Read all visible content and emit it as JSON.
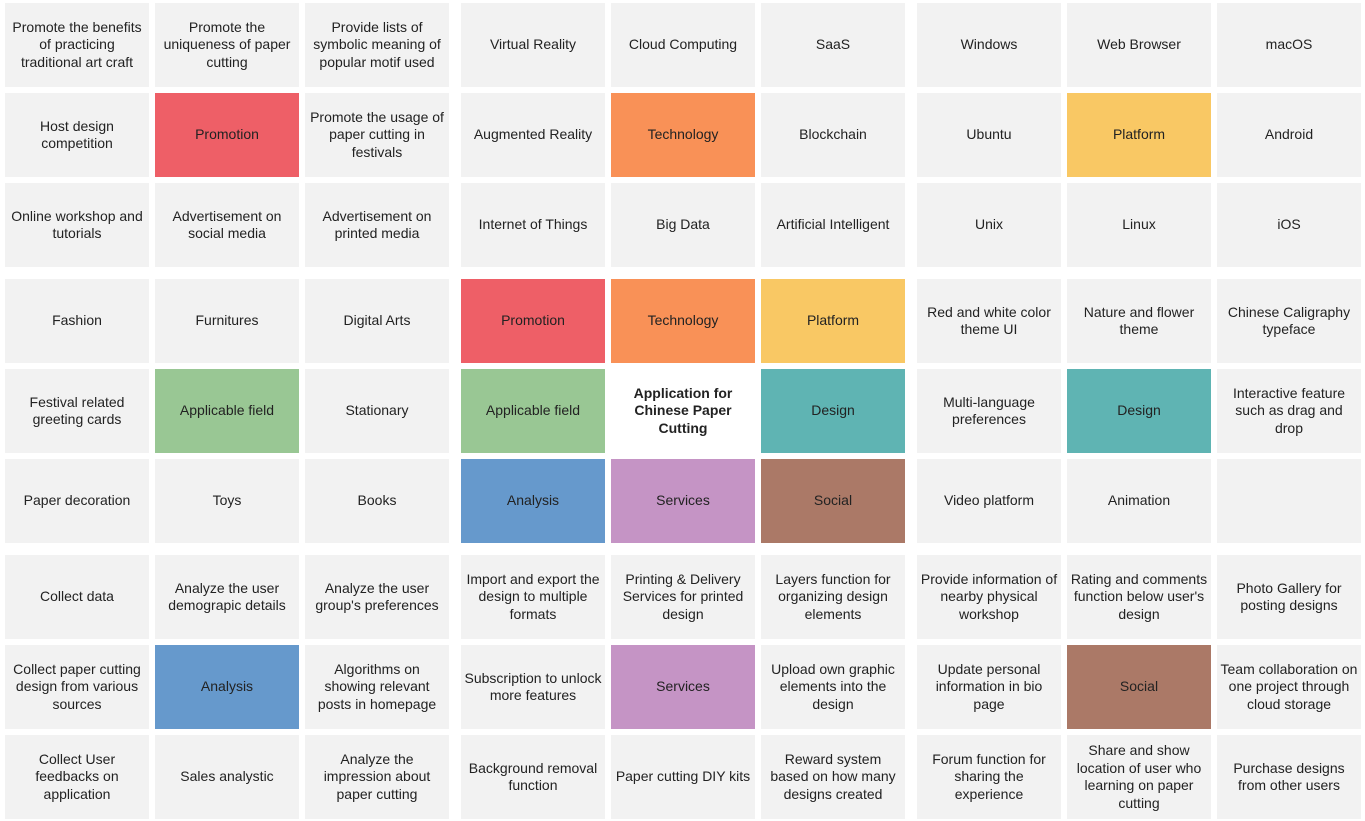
{
  "colors": {
    "empty": "#f2f2f2",
    "center": "#ffffff",
    "promotion": "#ee5f67",
    "technology": "#f99157",
    "platform": "#f9c864",
    "applicable": "#99c794",
    "design": "#5fb4b3",
    "analysis": "#6699cc",
    "services": "#c594c5",
    "social": "#ab7967"
  },
  "rows": [
    [
      {
        "text": "Promote the benefits of practicing traditional art craft"
      },
      {
        "text": "Promote the uniqueness of paper cutting"
      },
      {
        "text": "Provide lists of symbolic meaning of popular motif used"
      },
      {
        "text": "Virtual Reality"
      },
      {
        "text": "Cloud Computing"
      },
      {
        "text": "SaaS"
      },
      {
        "text": "Windows"
      },
      {
        "text": "Web Browser"
      },
      {
        "text": "macOS"
      }
    ],
    [
      {
        "text": "Host design competition"
      },
      {
        "text": "Promotion",
        "color": "promotion"
      },
      {
        "text": "Promote the usage of paper cutting in festivals"
      },
      {
        "text": "Augmented Reality"
      },
      {
        "text": "Technology",
        "color": "technology"
      },
      {
        "text": "Blockchain"
      },
      {
        "text": "Ubuntu"
      },
      {
        "text": "Platform",
        "color": "platform"
      },
      {
        "text": "Android"
      }
    ],
    [
      {
        "text": "Online workshop and tutorials"
      },
      {
        "text": "Advertisement on social media"
      },
      {
        "text": "Advertisement on printed media"
      },
      {
        "text": "Internet of Things"
      },
      {
        "text": "Big Data"
      },
      {
        "text": "Artificial Intelligent"
      },
      {
        "text": "Unix"
      },
      {
        "text": "Linux"
      },
      {
        "text": "iOS"
      }
    ],
    [
      {
        "text": "Fashion"
      },
      {
        "text": "Furnitures"
      },
      {
        "text": "Digital Arts"
      },
      {
        "text": "Promotion",
        "color": "promotion"
      },
      {
        "text": "Technology",
        "color": "technology"
      },
      {
        "text": "Platform",
        "color": "platform"
      },
      {
        "text": "Red and white color theme UI"
      },
      {
        "text": "Nature and flower theme"
      },
      {
        "text": "Chinese Caligraphy typeface"
      }
    ],
    [
      {
        "text": "Festival related greeting cards"
      },
      {
        "text": "Applicable field",
        "color": "applicable"
      },
      {
        "text": "Stationary"
      },
      {
        "text": "Applicable field",
        "color": "applicable"
      },
      {
        "text": "Application for Chinese Paper Cutting",
        "color": "center",
        "center": true
      },
      {
        "text": "Design",
        "color": "design"
      },
      {
        "text": "Multi-language preferences"
      },
      {
        "text": "Design",
        "color": "design"
      },
      {
        "text": "Interactive feature such as drag and drop"
      }
    ],
    [
      {
        "text": "Paper decoration"
      },
      {
        "text": "Toys"
      },
      {
        "text": "Books"
      },
      {
        "text": "Analysis",
        "color": "analysis"
      },
      {
        "text": "Services",
        "color": "services"
      },
      {
        "text": "Social",
        "color": "social"
      },
      {
        "text": "Video platform"
      },
      {
        "text": "Animation"
      },
      {
        "text": ""
      }
    ],
    [
      {
        "text": "Collect data"
      },
      {
        "text": "Analyze the user demograpic details"
      },
      {
        "text": "Analyze the user group's preferences"
      },
      {
        "text": "Import and export the design to multiple formats"
      },
      {
        "text": "Printing & Delivery Services for printed design"
      },
      {
        "text": "Layers function for organizing design elements"
      },
      {
        "text": "Provide information of nearby physical workshop"
      },
      {
        "text": "Rating and comments function below user's design"
      },
      {
        "text": "Photo Gallery for posting designs"
      }
    ],
    [
      {
        "text": "Collect paper cutting design from various sources"
      },
      {
        "text": "Analysis",
        "color": "analysis"
      },
      {
        "text": "Algorithms on showing relevant posts in homepage"
      },
      {
        "text": "Subscription to unlock more features"
      },
      {
        "text": "Services",
        "color": "services"
      },
      {
        "text": "Upload own graphic elements into the design"
      },
      {
        "text": "Update personal information in bio page"
      },
      {
        "text": "Social",
        "color": "social"
      },
      {
        "text": "Team collaboration on one project through cloud storage"
      }
    ],
    [
      {
        "text": "Collect User feedbacks on application"
      },
      {
        "text": "Sales analystic"
      },
      {
        "text": "Analyze the impression about paper cutting"
      },
      {
        "text": "Background removal function"
      },
      {
        "text": "Paper cutting DIY kits"
      },
      {
        "text": "Reward system based on how many designs created"
      },
      {
        "text": "Forum function for sharing the experience"
      },
      {
        "text": "Share and show location of user who learning on paper cutting"
      },
      {
        "text": "Purchase designs from other users"
      }
    ]
  ]
}
